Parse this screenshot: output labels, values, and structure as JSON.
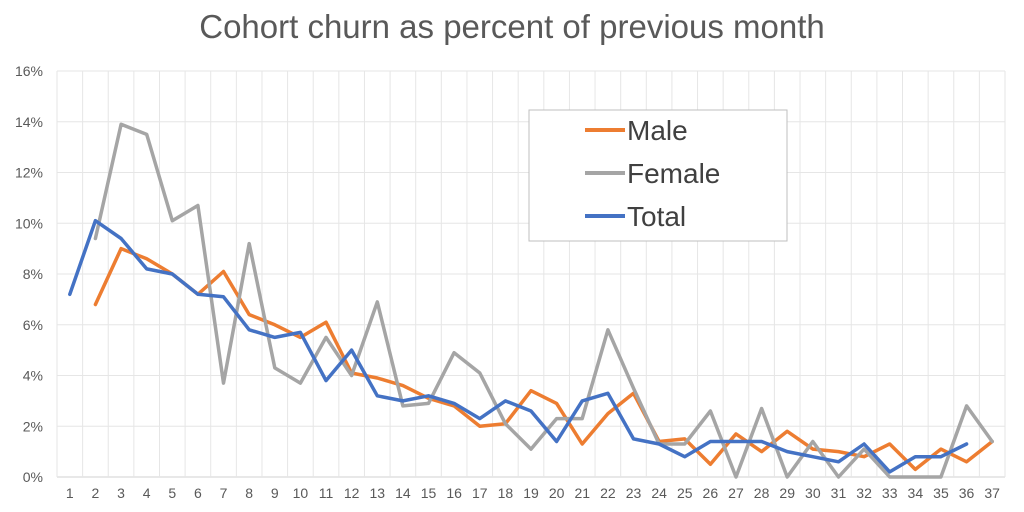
{
  "chart_data": {
    "type": "line",
    "title": "Cohort churn as percent of previous month",
    "xlabel": "",
    "ylabel": "",
    "categories": [
      "1",
      "2",
      "3",
      "4",
      "5",
      "6",
      "7",
      "8",
      "9",
      "10",
      "11",
      "12",
      "13",
      "14",
      "15",
      "16",
      "17",
      "18",
      "19",
      "20",
      "21",
      "22",
      "23",
      "24",
      "25",
      "26",
      "27",
      "28",
      "29",
      "30",
      "31",
      "32",
      "33",
      "34",
      "35",
      "36",
      "37"
    ],
    "ylim": [
      0,
      16
    ],
    "y_ticks": [
      "0%",
      "2%",
      "4%",
      "6%",
      "8%",
      "10%",
      "12%",
      "14%",
      "16%"
    ],
    "y_tick_values": [
      0,
      2,
      4,
      6,
      8,
      10,
      12,
      14,
      16
    ],
    "grid": true,
    "legend_position": "top-right",
    "series": [
      {
        "name": "Male",
        "color": "#ED7D31",
        "values": [
          null,
          6.8,
          9.0,
          8.6,
          8.0,
          7.2,
          8.1,
          6.4,
          6.0,
          5.5,
          6.1,
          4.1,
          3.9,
          3.6,
          3.1,
          2.8,
          2.0,
          2.1,
          3.4,
          2.9,
          1.3,
          2.5,
          3.3,
          1.4,
          1.5,
          0.5,
          1.7,
          1.0,
          1.8,
          1.1,
          1.0,
          0.8,
          1.3,
          0.3,
          1.1,
          0.6,
          1.4
        ]
      },
      {
        "name": "Female",
        "color": "#A5A5A5",
        "values": [
          null,
          9.4,
          13.9,
          13.5,
          10.1,
          10.7,
          3.7,
          9.2,
          4.3,
          3.7,
          5.5,
          4.0,
          6.9,
          2.8,
          2.9,
          4.9,
          4.1,
          2.1,
          1.1,
          2.3,
          2.3,
          5.8,
          3.5,
          1.3,
          1.3,
          2.6,
          0.0,
          2.7,
          0.0,
          1.4,
          0.0,
          1.1,
          0.0,
          0.0,
          0.0,
          2.8,
          1.4
        ]
      },
      {
        "name": "Total",
        "color": "#4472C4",
        "values": [
          7.2,
          10.1,
          9.4,
          8.2,
          8.0,
          7.2,
          7.1,
          5.8,
          5.5,
          5.7,
          3.8,
          5.0,
          3.2,
          3.0,
          3.2,
          2.9,
          2.3,
          3.0,
          2.6,
          1.4,
          3.0,
          3.3,
          1.5,
          1.3,
          0.8,
          1.4,
          1.4,
          1.4,
          1.0,
          0.8,
          0.6,
          1.3,
          0.2,
          0.8,
          0.8,
          1.3,
          null
        ]
      }
    ]
  }
}
